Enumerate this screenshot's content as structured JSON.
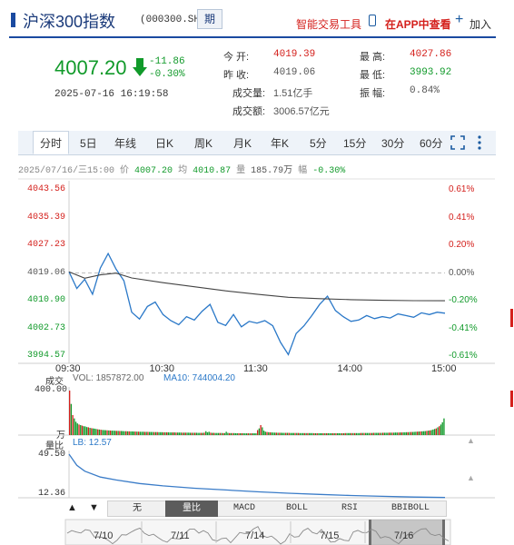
{
  "header": {
    "title": "沪深300指数",
    "code": "(000300.SH)",
    "period_label": "期",
    "tools_label": "智能交易工具",
    "app_label": "在APP中查看",
    "add_label": "加入"
  },
  "quote": {
    "price": "4007.20",
    "change": "-11.86",
    "change_pct": "-0.30%",
    "time": "2025-07-16 16:19:58",
    "open_label": "今    开:",
    "open": "4019.39",
    "prev_close_label": "昨    收:",
    "prev_close": "4019.06",
    "volume_label": "成交量:",
    "volume": "1.51亿手",
    "amount_label": "成交额:",
    "amount": "3006.57亿元",
    "high_label": "最    高:",
    "high": "4027.86",
    "low_label": "最    低:",
    "low": "3993.92",
    "amplitude_label": "振    幅:",
    "amplitude": "0.84%"
  },
  "tabs": [
    "分时",
    "5日",
    "年线",
    "日K",
    "周K",
    "月K",
    "年K",
    "5分",
    "15分",
    "30分",
    "60分"
  ],
  "active_tab": "分时",
  "info_line": {
    "datetime": "2025/07/16/三15:00",
    "price_label": "价",
    "price": "4007.20",
    "avg_label": "均",
    "avg": "4010.87",
    "vol_label": "量",
    "vol": "185.79万",
    "amp_label": "幅",
    "amp": "-0.30%"
  },
  "chart_data": {
    "type": "line",
    "y_ticks_left": [
      "4043.56",
      "4035.39",
      "4027.23",
      "4019.06",
      "4010.90",
      "4002.73",
      "3994.57"
    ],
    "y_ticks_right": [
      "0.61%",
      "0.41%",
      "0.20%",
      "0.00%",
      "-0.20%",
      "-0.41%",
      "-0.61%"
    ],
    "x_ticks": [
      "09:30",
      "10:30",
      "11:30",
      "14:00",
      "15:00"
    ],
    "ylim": [
      3994.57,
      4043.56
    ],
    "prev_close": 4019.06,
    "series": [
      {
        "x": [
          0,
          5,
          10,
          15,
          20,
          25,
          30,
          35,
          40,
          45,
          50,
          55,
          60,
          65,
          70,
          75,
          80,
          85,
          90,
          95,
          100,
          105,
          110,
          115,
          120,
          125,
          130,
          135,
          140,
          145,
          150,
          155,
          160,
          165,
          170,
          175,
          180,
          185,
          190,
          195,
          200,
          205,
          210,
          215,
          220,
          225,
          230,
          235,
          240
        ],
        "values": [
          4019.4,
          4014.5,
          4017.2,
          4012.8,
          4020.5,
          4024.8,
          4020.2,
          4016.8,
          4007.5,
          4005.5,
          4009.2,
          4010.5,
          4006.8,
          4005.0,
          4003.8,
          4006.2,
          4005.2,
          4007.8,
          4009.8,
          4004.5,
          4003.6,
          4006.8,
          4003.2,
          4004.8,
          4004.3,
          4005.0,
          4003.5,
          3998.6,
          3995.0,
          4001.2,
          4003.5,
          4006.5,
          4009.8,
          4012.2,
          4008.0,
          4006.2,
          4004.8,
          4005.2,
          4006.5,
          4005.6,
          4006.2,
          4005.8,
          4007.0,
          4006.5,
          4006.0,
          4007.3,
          4006.8,
          4007.5,
          4007.2
        ]
      },
      {
        "x": [
          0,
          10,
          20,
          30,
          40,
          60,
          80,
          100,
          120,
          140,
          160,
          180,
          200,
          220,
          240
        ],
        "values": [
          4019.4,
          4017.5,
          4018.5,
          4019.0,
          4017.6,
          4016.2,
          4015.0,
          4013.8,
          4012.8,
          4011.9,
          4011.5,
          4011.2,
          4011.0,
          4010.9,
          4010.87
        ]
      }
    ]
  },
  "volume": {
    "label": "成交",
    "vol_text": "VOL: 1857872.00",
    "ma_text": "MA10: 744004.20",
    "y_top": "400.00",
    "y_bottom_unit": "万",
    "values": [
      400,
      280,
      180,
      150,
      120,
      105,
      95,
      90,
      85,
      80,
      78,
      72,
      70,
      65,
      62,
      60,
      58,
      55,
      52,
      50,
      48,
      46,
      45,
      44,
      43,
      42,
      41,
      40,
      40,
      39,
      38,
      38,
      37,
      37,
      36,
      35,
      35,
      34,
      34,
      33,
      33,
      32,
      32,
      31,
      31,
      30,
      30,
      30,
      29,
      29,
      29,
      28,
      28,
      28,
      27,
      27,
      27,
      26,
      26,
      26,
      25,
      25,
      25,
      25,
      24,
      24,
      24,
      24,
      23,
      23,
      23,
      23,
      22,
      22,
      22,
      22,
      22,
      21,
      21,
      21,
      21,
      21,
      20,
      20,
      20,
      20,
      22,
      35,
      25,
      30,
      22,
      20,
      20,
      19,
      19,
      19,
      19,
      19,
      18,
      18,
      30,
      20,
      18,
      18,
      18,
      18,
      17,
      17,
      17,
      17,
      17,
      17,
      16,
      16,
      16,
      16,
      16,
      16,
      16,
      16,
      45,
      60,
      90,
      70,
      40,
      30,
      28,
      26,
      25,
      24,
      23,
      22,
      22,
      21,
      21,
      21,
      20,
      20,
      20,
      20,
      20,
      19,
      19,
      19,
      19,
      19,
      19,
      18,
      18,
      18,
      18,
      18,
      18,
      18,
      18,
      18,
      17,
      17,
      17,
      17,
      17,
      17,
      17,
      17,
      17,
      17,
      17,
      17,
      17,
      17,
      17,
      17,
      17,
      17,
      17,
      17,
      18,
      18,
      18,
      18,
      18,
      18,
      18,
      18,
      18,
      18,
      19,
      19,
      19,
      19,
      19,
      19,
      19,
      19,
      20,
      20,
      20,
      20,
      20,
      20,
      21,
      21,
      21,
      21,
      22,
      22,
      22,
      22,
      23,
      23,
      23,
      24,
      24,
      25,
      25,
      26,
      26,
      27,
      28,
      28,
      29,
      30,
      31,
      32,
      33,
      34,
      35,
      36,
      38,
      40,
      42,
      45,
      50,
      55,
      60,
      70,
      80,
      95,
      115,
      150
    ]
  },
  "ratio": {
    "label": "量比",
    "lb_text": "LB: 12.57",
    "y_top": "49.50",
    "y_bottom": "12.36",
    "ylim": [
      12.36,
      49.5
    ],
    "x": [
      0,
      5,
      10,
      20,
      30,
      45,
      60,
      80,
      100,
      120,
      140,
      160,
      180,
      200,
      220,
      240
    ],
    "values": [
      49.5,
      40.0,
      35.0,
      30.0,
      27.5,
      24.5,
      22.5,
      20.5,
      19.0,
      17.5,
      16.2,
      15.2,
      14.3,
      13.6,
      13.0,
      12.57
    ]
  },
  "subtabs": [
    "无",
    "量比",
    "MACD",
    "BOLL",
    "RSI",
    "BBIBOLL"
  ],
  "active_subtab": "量比",
  "navigator": {
    "labels": [
      "7/10",
      "7/11",
      "7/14",
      "7/15",
      "7/16"
    ]
  },
  "colors": {
    "up": "#d4201c",
    "down": "#119a2a",
    "price_line": "#2a78c8",
    "avg_line": "#444444",
    "ratio_line": "#3a7cc8",
    "accent": "#1a4aa0"
  }
}
